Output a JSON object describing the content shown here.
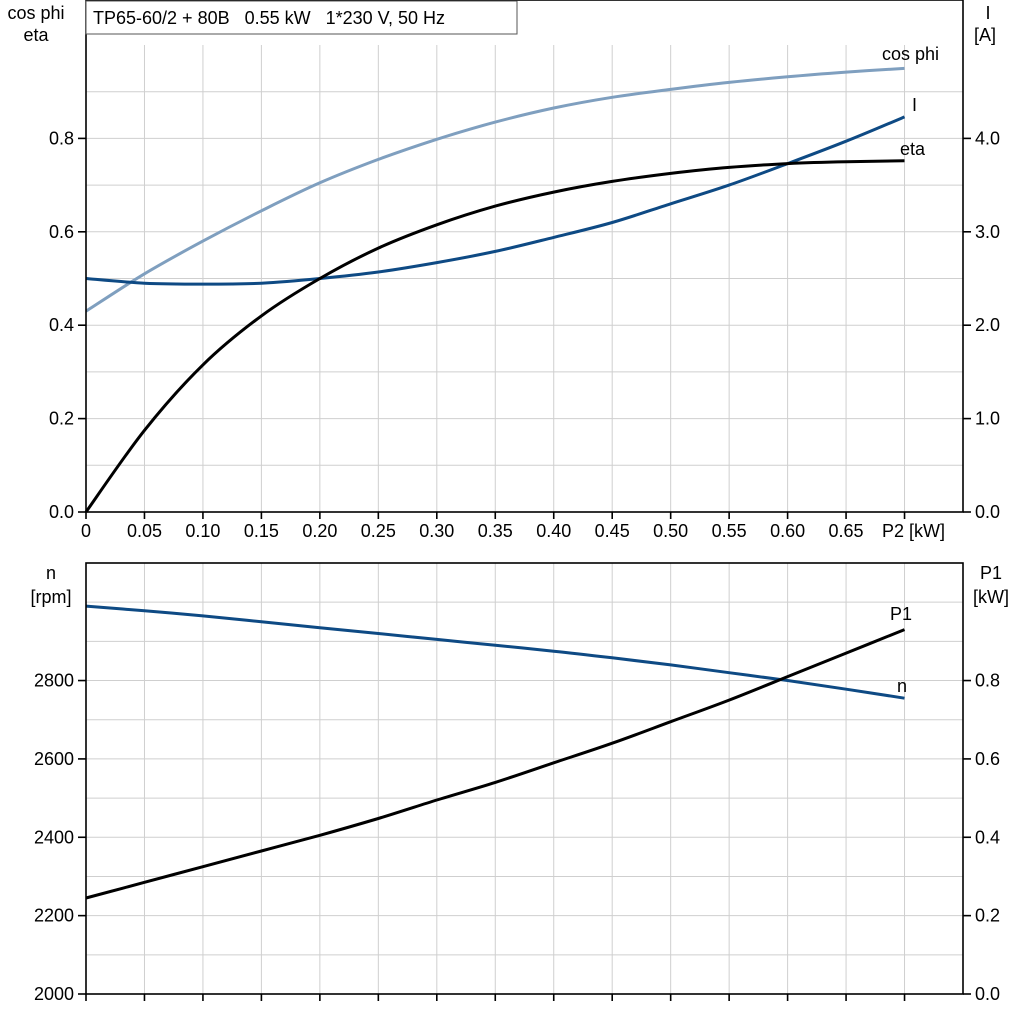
{
  "colors": {
    "cos_phi": "#7f9fbf",
    "current": "#0e4a84",
    "eta": "#000000",
    "speed": "#0e4a84",
    "p1": "#000000",
    "grid": "#cfcfcf"
  },
  "chart_data": [
    {
      "type": "line",
      "title": "TP65-60/2 + 80B   0.55 kW   1*230 V, 50 Hz",
      "xlabel": "P2 [kW]",
      "ylabel_left": [
        "cos phi",
        "eta"
      ],
      "ylabel_right": [
        "I",
        "[A]"
      ],
      "xlim": [
        0,
        0.75
      ],
      "ylim_left": [
        0,
        1.0
      ],
      "ylim_right": [
        0,
        5.0
      ],
      "grid": true,
      "x_tick_labels": [
        "0",
        "0.05",
        "0.10",
        "0.15",
        "0.20",
        "0.25",
        "0.30",
        "0.35",
        "0.40",
        "0.45",
        "0.50",
        "0.55",
        "0.60",
        "0.65"
      ],
      "left_tick_labels": [
        "0.0",
        "0.2",
        "0.4",
        "0.6",
        "0.8"
      ],
      "right_tick_labels": [
        "0.0",
        "1.0",
        "2.0",
        "3.0",
        "4.0"
      ],
      "x": [
        0,
        0.05,
        0.1,
        0.15,
        0.2,
        0.25,
        0.3,
        0.35,
        0.4,
        0.45,
        0.5,
        0.55,
        0.6,
        0.65,
        0.7
      ],
      "series": [
        {
          "name": "cos phi",
          "axis": "left",
          "color_key": "cos_phi",
          "values": [
            0.43,
            0.51,
            0.58,
            0.645,
            0.705,
            0.755,
            0.798,
            0.835,
            0.865,
            0.888,
            0.905,
            0.92,
            0.932,
            0.942,
            0.95
          ]
        },
        {
          "name": "I",
          "axis": "right",
          "color_key": "current",
          "values": [
            2.5,
            2.45,
            2.44,
            2.45,
            2.5,
            2.57,
            2.67,
            2.79,
            2.94,
            3.1,
            3.3,
            3.5,
            3.73,
            3.97,
            4.23
          ]
        },
        {
          "name": "eta",
          "axis": "left",
          "color_key": "eta",
          "values": [
            0.0,
            0.175,
            0.315,
            0.42,
            0.5,
            0.565,
            0.615,
            0.655,
            0.685,
            0.708,
            0.725,
            0.738,
            0.746,
            0.75,
            0.752
          ]
        }
      ]
    },
    {
      "type": "line",
      "title": "",
      "ylabel_left": [
        "n",
        "[rpm]"
      ],
      "ylabel_right": [
        "P1",
        "[kW]"
      ],
      "xlim": [
        0,
        0.75
      ],
      "ylim_left": [
        2000,
        3100
      ],
      "ylim_right": [
        0,
        1.1
      ],
      "grid": true,
      "left_tick_labels": [
        "2000",
        "2200",
        "2400",
        "2600",
        "2800"
      ],
      "right_tick_labels": [
        "0.0",
        "0.2",
        "0.4",
        "0.6",
        "0.8"
      ],
      "x": [
        0,
        0.05,
        0.1,
        0.15,
        0.2,
        0.25,
        0.3,
        0.35,
        0.4,
        0.45,
        0.5,
        0.55,
        0.6,
        0.65,
        0.7
      ],
      "series": [
        {
          "name": "n",
          "axis": "left",
          "color_key": "speed",
          "values": [
            2990,
            2978,
            2965,
            2950,
            2935,
            2920,
            2905,
            2890,
            2875,
            2858,
            2840,
            2820,
            2800,
            2778,
            2755
          ]
        },
        {
          "name": "P1",
          "axis": "right",
          "color_key": "p1",
          "values": [
            0.245,
            0.285,
            0.325,
            0.365,
            0.405,
            0.448,
            0.495,
            0.54,
            0.59,
            0.64,
            0.695,
            0.75,
            0.81,
            0.87,
            0.93
          ]
        }
      ]
    }
  ]
}
